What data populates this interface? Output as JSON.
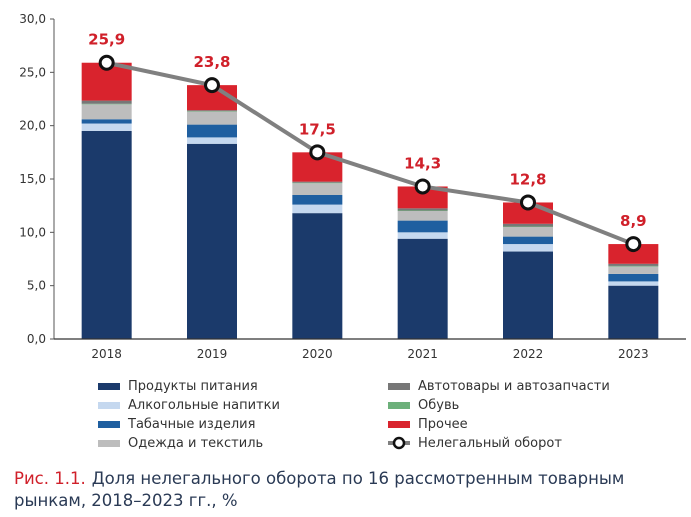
{
  "chart_data": {
    "type": "bar",
    "stacked": true,
    "categories": [
      "2018",
      "2019",
      "2020",
      "2021",
      "2022",
      "2023"
    ],
    "ylim": [
      0,
      30
    ],
    "yticks": [
      "0,0",
      "5,0",
      "10,0",
      "15,0",
      "20,0",
      "25,0",
      "30,0"
    ],
    "grid": false,
    "legend_position": "bottom",
    "series": [
      {
        "name": "Продукты питания",
        "color": "#1b3a6b",
        "values": [
          19.5,
          18.3,
          11.8,
          9.4,
          8.2,
          5.0
        ]
      },
      {
        "name": "Алкогольные напитки",
        "color": "#c5d8ef",
        "values": [
          0.7,
          0.6,
          0.8,
          0.6,
          0.7,
          0.4
        ]
      },
      {
        "name": "Табачные изделия",
        "color": "#1f5fa0",
        "values": [
          0.4,
          1.2,
          0.9,
          1.1,
          0.7,
          0.7
        ]
      },
      {
        "name": "Одежда и текстиль",
        "color": "#bdbdbd",
        "values": [
          1.4,
          1.2,
          1.1,
          0.9,
          0.9,
          0.7
        ]
      },
      {
        "name": "Обувь",
        "color": "#6cb07a",
        "values": [
          0.05,
          0.05,
          0.05,
          0.05,
          0.05,
          0.05
        ]
      },
      {
        "name": "Автотовары и автозапчасти",
        "color": "#777777",
        "values": [
          0.3,
          0.1,
          0.1,
          0.2,
          0.25,
          0.2
        ]
      },
      {
        "name": "Прочее",
        "color": "#d9232d",
        "values": [
          3.55,
          2.35,
          2.75,
          2.05,
          2.0,
          1.85
        ]
      }
    ],
    "line": {
      "name": "Нелегальный оборот",
      "color": "#808080",
      "values": [
        25.9,
        23.8,
        17.5,
        14.3,
        12.8,
        8.9
      ]
    },
    "total_labels": [
      "25,9",
      "23,8",
      "17,5",
      "14,3",
      "12,8",
      "8,9"
    ]
  },
  "legend": {
    "left": [
      "Продукты питания",
      "Алкогольные напитки",
      "Табачные изделия",
      "Одежда и текстиль"
    ],
    "right": [
      "Автотовары и автозапчасти",
      "Обувь",
      "Прочее",
      "Нелегальный оборот"
    ]
  },
  "caption": {
    "figure_label": "Рис. 1.1.",
    "text": "Доля нелегального оборота по 16 рассмотренным товарным рынкам, 2018–2023 гг., %"
  }
}
